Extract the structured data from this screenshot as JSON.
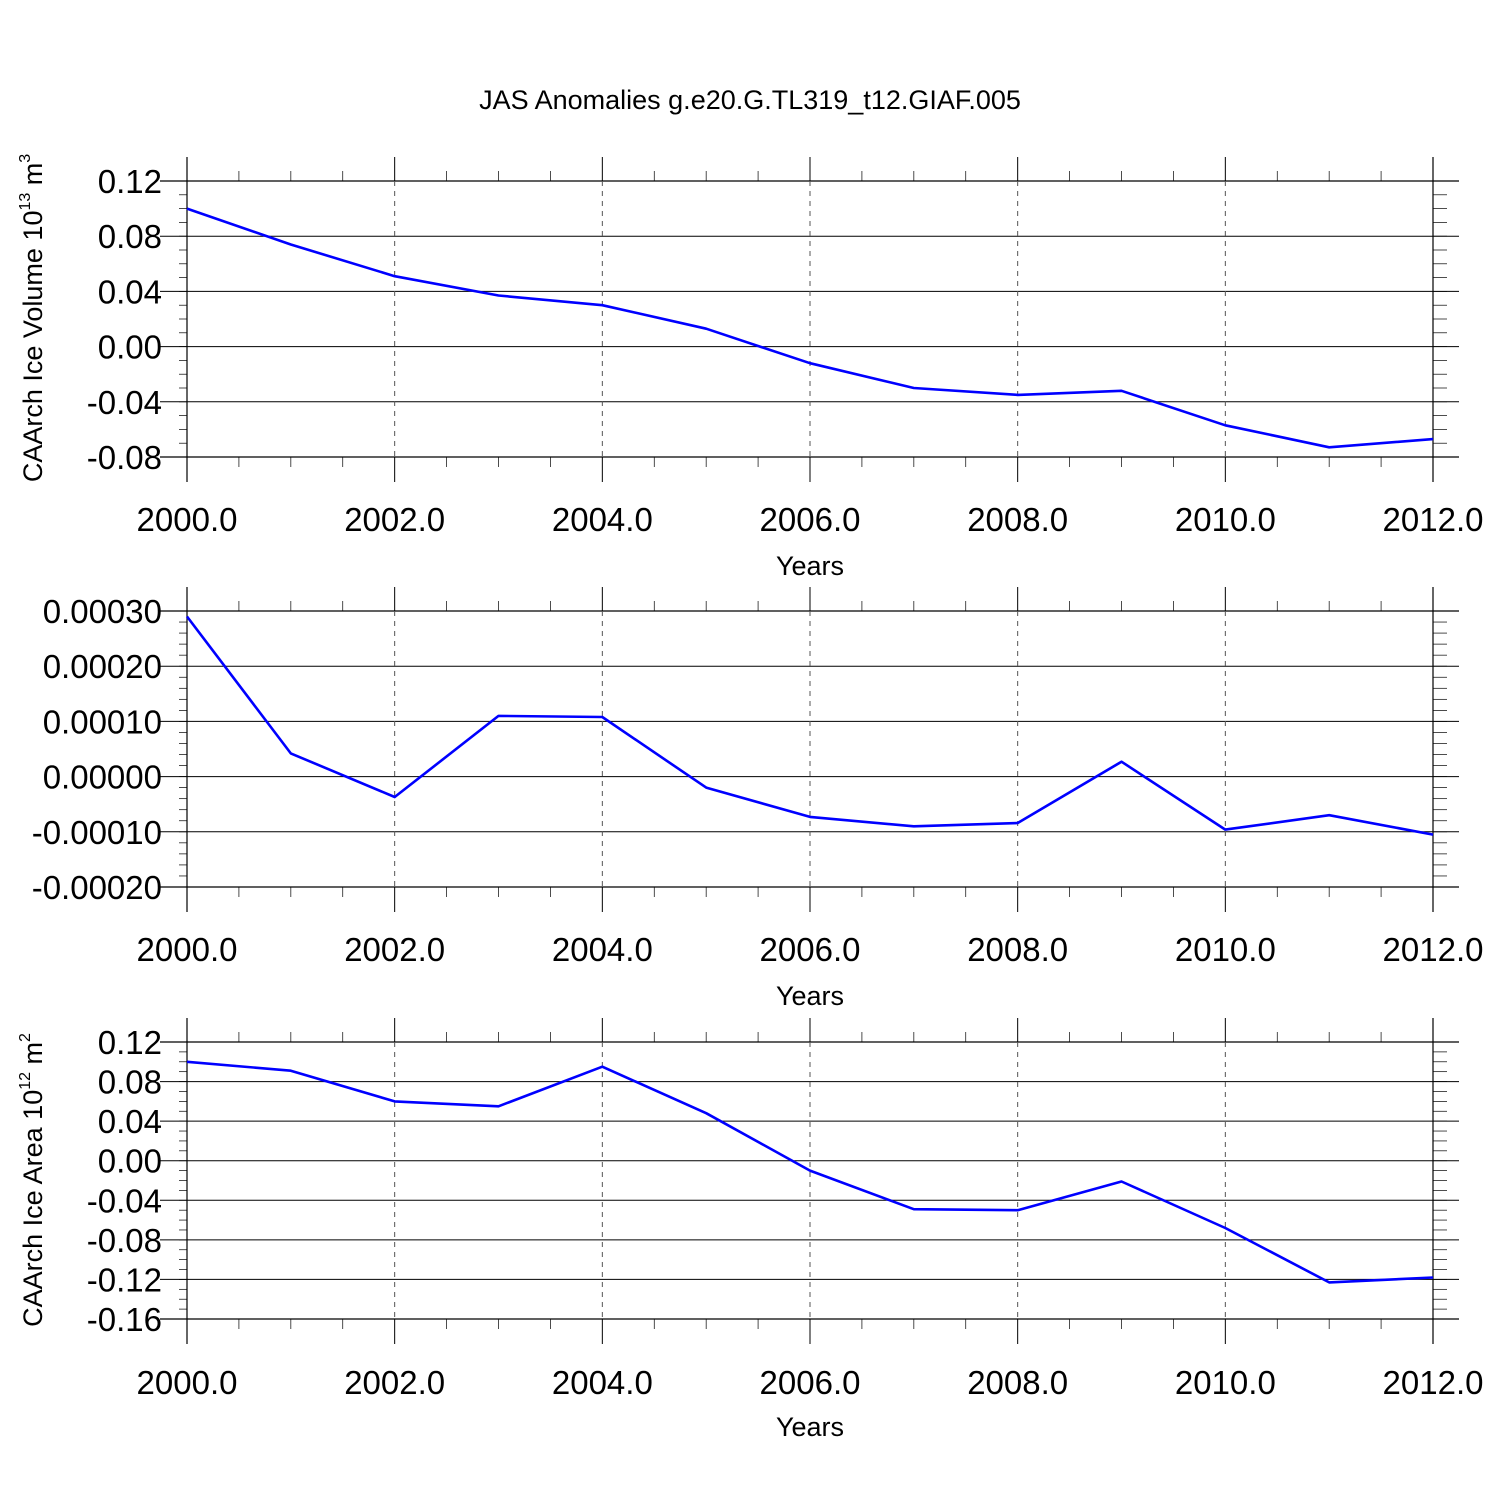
{
  "title": "JAS Anomalies g.e20.G.TL319_t12.GIAF.005",
  "colors": {
    "line": "#0000ff",
    "axis": "#000000",
    "grid": "#555555"
  },
  "chart_data": [
    {
      "type": "line",
      "ylabel_main": "CAArch Ice Volume 10",
      "ylabel_exp": "13",
      "ylabel_unit": " m",
      "ylabel_unit_exp": "3",
      "xlabel": "Years",
      "xlim": [
        2000,
        2012
      ],
      "ylim": [
        -0.09,
        0.12
      ],
      "xticks": [
        2000,
        2002,
        2004,
        2006,
        2008,
        2010,
        2012
      ],
      "xtick_labels": [
        "2000.0",
        "2002.0",
        "2004.0",
        "2006.0",
        "2008.0",
        "2010.0",
        "2012.0"
      ],
      "yticks": [
        0.12,
        0.08,
        0.04,
        0.0,
        -0.04,
        -0.08
      ],
      "ytick_labels": [
        "0.12",
        "0.08",
        "0.04",
        "0.00",
        "-0.04",
        "-0.08"
      ],
      "grid": "vertical dashed at major x ticks",
      "x": [
        2000,
        2001,
        2002,
        2003,
        2004,
        2005,
        2006,
        2007,
        2008,
        2009,
        2010,
        2011,
        2012
      ],
      "y": [
        0.1,
        0.074,
        0.051,
        0.037,
        0.03,
        0.013,
        -0.012,
        -0.03,
        -0.035,
        -0.032,
        -0.057,
        -0.073,
        -0.067
      ]
    },
    {
      "type": "line",
      "ylabel_main": "",
      "ylabel_exp": "",
      "ylabel_unit": "",
      "ylabel_unit_exp": "",
      "xlabel": "Years",
      "xlim": [
        2000,
        2012
      ],
      "ylim": [
        -0.0002,
        0.0003
      ],
      "xticks": [
        2000,
        2002,
        2004,
        2006,
        2008,
        2010,
        2012
      ],
      "xtick_labels": [
        "2000.0",
        "2002.0",
        "2004.0",
        "2006.0",
        "2008.0",
        "2010.0",
        "2012.0"
      ],
      "yticks": [
        0.0003,
        0.0002,
        0.0001,
        0.0,
        -0.0001,
        -0.0002
      ],
      "ytick_labels": [
        "0.00030",
        "0.00020",
        "0.00010",
        "0.00000",
        "-0.00010",
        "-0.00020"
      ],
      "grid": "vertical dashed at major x ticks",
      "x": [
        2000,
        2001,
        2002,
        2003,
        2004,
        2005,
        2006,
        2007,
        2008,
        2009,
        2010,
        2011,
        2012
      ],
      "y": [
        0.00029,
        4.2e-05,
        -3.7e-05,
        0.00011,
        0.000108,
        -2e-05,
        -7.3e-05,
        -9e-05,
        -8.4e-05,
        2.7e-05,
        -9.6e-05,
        -7e-05,
        -0.000105
      ]
    },
    {
      "type": "line",
      "ylabel_main": "CAArch Ice Area 10",
      "ylabel_exp": "12",
      "ylabel_unit": " m",
      "ylabel_unit_exp": "2",
      "xlabel": "Years",
      "xlim": [
        2000,
        2012
      ],
      "ylim": [
        -0.16,
        0.12
      ],
      "xticks": [
        2000,
        2002,
        2004,
        2006,
        2008,
        2010,
        2012
      ],
      "xtick_labels": [
        "2000.0",
        "2002.0",
        "2004.0",
        "2006.0",
        "2008.0",
        "2010.0",
        "2012.0"
      ],
      "yticks": [
        0.12,
        0.08,
        0.04,
        0.0,
        -0.04,
        -0.08,
        -0.12,
        -0.16
      ],
      "ytick_labels": [
        "0.12",
        "0.08",
        "0.04",
        "0.00",
        "-0.04",
        "-0.08",
        "-0.12",
        "-0.16"
      ],
      "grid": "vertical dashed at major x ticks",
      "x": [
        2000,
        2001,
        2002,
        2003,
        2004,
        2005,
        2006,
        2007,
        2008,
        2009,
        2010,
        2011,
        2012
      ],
      "y": [
        0.1,
        0.091,
        0.06,
        0.055,
        0.095,
        0.048,
        -0.01,
        -0.049,
        -0.05,
        -0.021,
        -0.068,
        -0.123,
        -0.118
      ]
    }
  ]
}
